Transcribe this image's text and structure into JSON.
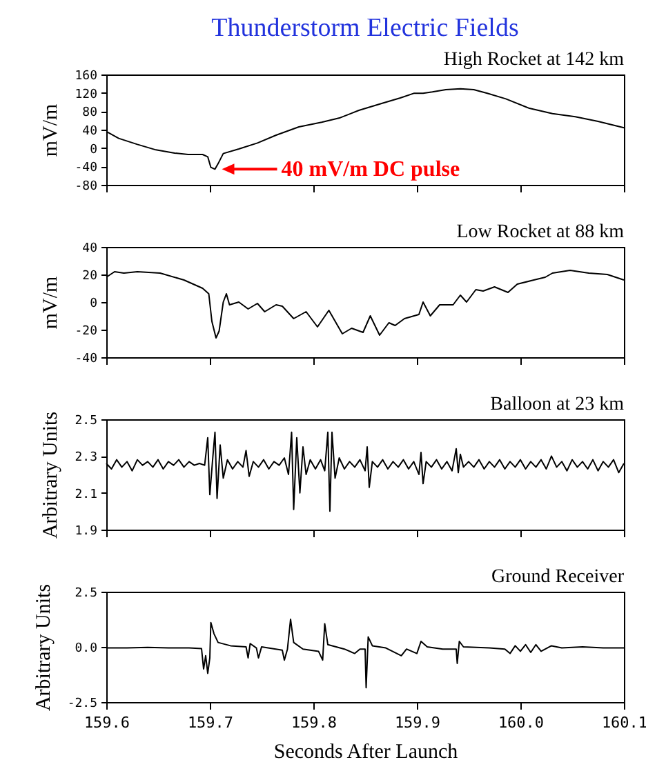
{
  "chart_data": [
    {
      "type": "line",
      "title": "Thunderstorm Electric Fields",
      "subtitle": "High Rocket at 142 km",
      "ylabel": "mV/m",
      "xlim": [
        159.6,
        160.1
      ],
      "xticks": [
        159.6,
        159.7,
        159.8,
        159.9,
        160,
        160.1
      ],
      "ylim": [
        -80,
        160
      ],
      "yticks": [
        -80,
        -40,
        0,
        40,
        80,
        120,
        160
      ],
      "tick_labels": "y",
      "x": [
        159.6,
        159.612,
        159.63,
        159.648,
        159.666,
        159.679,
        159.693,
        159.698,
        159.701,
        159.705,
        159.708,
        159.713,
        159.728,
        159.746,
        159.764,
        159.786,
        159.808,
        159.826,
        159.844,
        159.866,
        159.884,
        159.897,
        159.906,
        159.915,
        159.928,
        159.942,
        159.955,
        159.968,
        159.986,
        160.008,
        160.031,
        160.053,
        160.075,
        160.1
      ],
      "series": [
        {
          "color": "#000000",
          "values": [
            36,
            21,
            8,
            -4,
            -11,
            -14,
            -14,
            -19,
            -42,
            -46,
            -34,
            -12,
            -2,
            11,
            28,
            46,
            56,
            66,
            82,
            97,
            109,
            119,
            119,
            122,
            127,
            129,
            127,
            119,
            107,
            87,
            75,
            68,
            58,
            44
          ]
        }
      ],
      "annotations": [
        {
          "text": "40 mV/m DC pulse",
          "x": 159.705,
          "y": -46
        }
      ]
    },
    {
      "type": "line",
      "title": "Low Rocket at 88 km",
      "ylabel": "mV/m",
      "xlim": [
        159.6,
        160.1
      ],
      "xticks": [
        159.6,
        159.7,
        159.8,
        159.9,
        160,
        160.1
      ],
      "ylim": [
        -40,
        40
      ],
      "yticks": [
        -40,
        -20,
        0,
        20,
        40
      ],
      "tick_labels": "y",
      "x": [
        159.6,
        159.608,
        159.617,
        159.63,
        159.652,
        159.675,
        159.693,
        159.699,
        159.702,
        159.706,
        159.709,
        159.713,
        159.716,
        159.719,
        159.728,
        159.737,
        159.746,
        159.753,
        159.764,
        159.77,
        159.781,
        159.793,
        159.804,
        159.815,
        159.828,
        159.837,
        159.848,
        159.855,
        159.864,
        159.873,
        159.879,
        159.888,
        159.902,
        159.906,
        159.913,
        159.922,
        159.935,
        159.942,
        159.948,
        159.957,
        159.964,
        159.975,
        159.988,
        159.997,
        160.013,
        160.024,
        160.031,
        160.048,
        160.066,
        160.084,
        160.1
      ],
      "series": [
        {
          "color": "#000000",
          "values": [
            18,
            22,
            21,
            22,
            21,
            16,
            10,
            6,
            -14,
            -26,
            -21,
            0,
            6,
            -2,
            0,
            -5,
            -1,
            -7,
            -2,
            -3,
            -12,
            -7,
            -18,
            -6,
            -23,
            -19,
            -22,
            -10,
            -24,
            -15,
            -17,
            -12,
            -9,
            0,
            -10,
            -2,
            -2,
            5,
            0,
            9,
            8,
            11,
            7,
            13,
            16,
            18,
            21,
            23,
            21,
            20,
            16
          ]
        }
      ]
    },
    {
      "type": "line",
      "title": "Balloon at 23 km",
      "ylabel": "Arbitrary Units",
      "xlim": [
        159.6,
        160.1
      ],
      "xticks": [
        159.6,
        159.7,
        159.8,
        159.9,
        160,
        160.1
      ],
      "ylim": [
        1.9,
        2.5
      ],
      "yticks": [
        1.9,
        2.1,
        2.3,
        2.5
      ],
      "tick_labels": "y",
      "x": [
        159.6,
        159.605,
        159.61,
        159.615,
        159.62,
        159.625,
        159.63,
        159.635,
        159.64,
        159.645,
        159.65,
        159.655,
        159.66,
        159.665,
        159.67,
        159.675,
        159.68,
        159.685,
        159.69,
        159.695,
        159.698,
        159.7,
        159.703,
        159.705,
        159.707,
        159.71,
        159.713,
        159.717,
        159.722,
        159.727,
        159.732,
        159.735,
        159.738,
        159.742,
        159.747,
        159.752,
        159.757,
        159.762,
        159.767,
        159.772,
        159.776,
        159.779,
        159.781,
        159.784,
        159.787,
        159.79,
        159.793,
        159.797,
        159.802,
        159.807,
        159.811,
        159.814,
        159.816,
        159.818,
        159.821,
        159.825,
        159.83,
        159.835,
        159.84,
        159.845,
        159.85,
        159.852,
        159.854,
        159.857,
        159.862,
        159.867,
        159.872,
        159.877,
        159.882,
        159.887,
        159.892,
        159.897,
        159.902,
        159.904,
        159.906,
        159.909,
        159.914,
        159.919,
        159.924,
        159.929,
        159.934,
        159.938,
        159.94,
        159.942,
        159.945,
        159.95,
        159.955,
        159.96,
        159.965,
        159.97,
        159.975,
        159.98,
        159.985,
        159.99,
        159.995,
        160.0,
        160.005,
        160.01,
        160.015,
        160.02,
        160.025,
        160.03,
        160.035,
        160.04,
        160.045,
        160.05,
        160.055,
        160.06,
        160.065,
        160.07,
        160.075,
        160.08,
        160.085,
        160.09,
        160.095,
        160.1
      ],
      "series": [
        {
          "color": "#000000",
          "values": [
            2.26,
            2.23,
            2.28,
            2.24,
            2.27,
            2.22,
            2.28,
            2.25,
            2.27,
            2.24,
            2.28,
            2.23,
            2.27,
            2.25,
            2.28,
            2.24,
            2.27,
            2.25,
            2.26,
            2.25,
            2.4,
            2.09,
            2.3,
            2.43,
            2.07,
            2.36,
            2.18,
            2.28,
            2.23,
            2.27,
            2.24,
            2.33,
            2.19,
            2.27,
            2.24,
            2.28,
            2.23,
            2.27,
            2.25,
            2.29,
            2.2,
            2.43,
            2.01,
            2.4,
            2.1,
            2.35,
            2.2,
            2.28,
            2.23,
            2.28,
            2.22,
            2.43,
            2.0,
            2.43,
            2.18,
            2.29,
            2.23,
            2.27,
            2.24,
            2.28,
            2.22,
            2.35,
            2.13,
            2.27,
            2.24,
            2.28,
            2.23,
            2.27,
            2.24,
            2.28,
            2.23,
            2.27,
            2.2,
            2.32,
            2.15,
            2.27,
            2.24,
            2.28,
            2.23,
            2.27,
            2.22,
            2.34,
            2.21,
            2.31,
            2.24,
            2.27,
            2.24,
            2.28,
            2.23,
            2.27,
            2.24,
            2.28,
            2.23,
            2.27,
            2.24,
            2.28,
            2.23,
            2.27,
            2.24,
            2.28,
            2.23,
            2.3,
            2.24,
            2.27,
            2.22,
            2.28,
            2.24,
            2.27,
            2.23,
            2.28,
            2.22,
            2.27,
            2.24,
            2.28,
            2.21,
            2.26
          ]
        }
      ]
    },
    {
      "type": "line",
      "title": "Ground Receiver",
      "xlabel": "Seconds After Launch",
      "ylabel": "Arbitrary Units",
      "xlim": [
        159.6,
        160.1
      ],
      "xticks": [
        159.6,
        159.7,
        159.8,
        159.9,
        {
          "value": 160,
          "label": "160.0"
        },
        160.1
      ],
      "ylim": [
        -2.5,
        2.5
      ],
      "yticks": [
        -2.5,
        {
          "value": 0,
          "label": "0.0"
        },
        2.5
      ],
      "x": [
        159.6,
        159.62,
        159.64,
        159.66,
        159.68,
        159.692,
        159.694,
        159.696,
        159.698,
        159.7,
        159.701,
        159.704,
        159.708,
        159.72,
        159.735,
        159.737,
        159.739,
        159.745,
        159.747,
        159.75,
        159.77,
        159.772,
        159.775,
        159.778,
        159.781,
        159.79,
        159.805,
        159.809,
        159.811,
        159.814,
        159.83,
        159.84,
        159.845,
        159.85,
        159.851,
        159.853,
        159.857,
        159.87,
        159.885,
        159.89,
        159.9,
        159.904,
        159.91,
        159.925,
        159.938,
        159.939,
        159.941,
        159.945,
        159.97,
        159.985,
        159.99,
        159.995,
        160.0,
        160.005,
        160.01,
        160.015,
        160.02,
        160.03,
        160.04,
        160.06,
        160.08,
        160.1
      ],
      "series": [
        {
          "color": "#000000",
          "values": [
            -0.05,
            -0.05,
            -0.02,
            -0.05,
            -0.05,
            -0.08,
            -1.0,
            -0.4,
            -1.2,
            -0.5,
            1.1,
            0.6,
            0.2,
            0.05,
            0.0,
            -0.5,
            0.15,
            -0.05,
            -0.5,
            0.0,
            -0.15,
            -0.6,
            -0.1,
            1.25,
            0.2,
            -0.1,
            -0.2,
            -0.6,
            1.05,
            0.1,
            -0.1,
            -0.3,
            -0.1,
            -0.1,
            -1.85,
            0.45,
            0.05,
            -0.05,
            -0.4,
            -0.1,
            -0.3,
            0.25,
            0.0,
            -0.1,
            -0.1,
            -0.75,
            0.25,
            0.0,
            -0.05,
            -0.1,
            -0.3,
            0.05,
            -0.2,
            0.1,
            -0.25,
            0.1,
            -0.2,
            0.05,
            -0.05,
            0.0,
            -0.05,
            -0.05
          ]
        }
      ]
    }
  ]
}
